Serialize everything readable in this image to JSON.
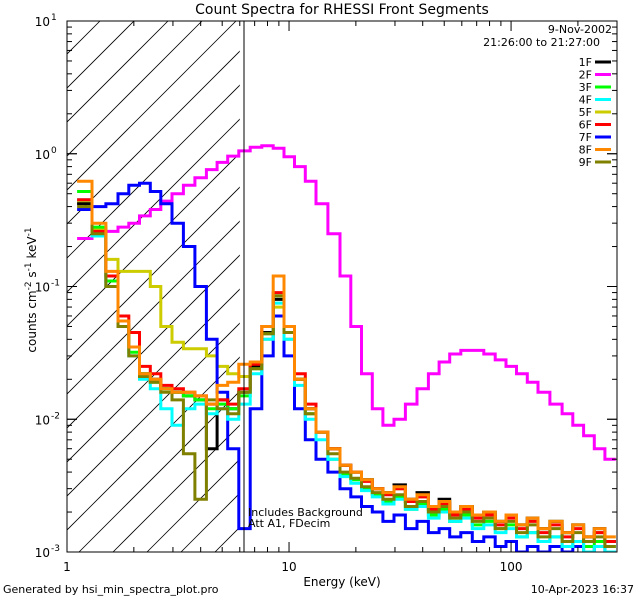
{
  "chart_data": {
    "type": "line",
    "title": "Count Spectra for RHESSI Front Segments",
    "xlabel": "Energy (keV)",
    "ylabel": "counts cm-2 s-1 keV-1",
    "xscale": "log",
    "yscale": "log",
    "xlim": [
      1,
      300
    ],
    "ylim": [
      0.001,
      10
    ],
    "x_tick_labels": [
      {
        "value": 1,
        "label": "1"
      },
      {
        "value": 10,
        "label": "10"
      },
      {
        "value": 100,
        "label": "100"
      }
    ],
    "y_tick_labels": [
      {
        "value": 0.001,
        "base": "10",
        "exp": "-3"
      },
      {
        "value": 0.01,
        "base": "10",
        "exp": "-2"
      },
      {
        "value": 0.1,
        "base": "10",
        "exp": "-1"
      },
      {
        "value": 1,
        "base": "10",
        "exp": "0"
      },
      {
        "value": 10,
        "base": "10",
        "exp": "1"
      }
    ],
    "date": "9-Nov-2002",
    "time_range": "21:26:00 to 21:27:00",
    "excluded_region": {
      "xmin": 1,
      "xmax": 6,
      "style": "hatched"
    },
    "annotations": [
      "Includes Background",
      "Att A1, FDecim"
    ],
    "legend_position": "top-right",
    "series": [
      {
        "name": "1F",
        "color": "#000000",
        "x": [
          1.2,
          1.4,
          1.6,
          1.8,
          2.0,
          2.25,
          2.5,
          2.8,
          3.15,
          3.55,
          4.0,
          4.5,
          5.0,
          5.6,
          6.3,
          7.1,
          8.0,
          9.0,
          10.0,
          11.2,
          12.5,
          14,
          16,
          18,
          20,
          22.5,
          25,
          28,
          31.5,
          35.5,
          40,
          45,
          50,
          56,
          63,
          71,
          80,
          90,
          100,
          112,
          125,
          140,
          160,
          180,
          200,
          225,
          250,
          280
        ],
        "y": [
          0.42,
          0.25,
          0.1,
          0.05,
          0.035,
          0.022,
          0.02,
          0.017,
          0.016,
          0.015,
          0.014,
          0.006,
          0.014,
          0.012,
          0.016,
          0.025,
          0.045,
          0.08,
          0.045,
          0.02,
          0.012,
          0.008,
          0.006,
          0.0045,
          0.004,
          0.0035,
          0.003,
          0.0028,
          0.0032,
          0.0025,
          0.0028,
          0.0022,
          0.0025,
          0.002,
          0.0022,
          0.0019,
          0.002,
          0.0017,
          0.0019,
          0.0016,
          0.0018,
          0.0015,
          0.0017,
          0.0014,
          0.0016,
          0.0013,
          0.0015,
          0.0012
        ]
      },
      {
        "name": "2F",
        "color": "#ff00ff",
        "x": [
          1.2,
          1.4,
          1.6,
          1.8,
          2.0,
          2.25,
          2.5,
          2.8,
          3.15,
          3.55,
          4.0,
          4.5,
          5.0,
          5.6,
          6.3,
          7.1,
          8.0,
          9.0,
          10.0,
          11.2,
          12.5,
          14,
          16,
          18,
          20,
          22.5,
          25,
          28,
          31.5,
          35.5,
          40,
          45,
          50,
          56,
          63,
          71,
          80,
          90,
          100,
          112,
          125,
          140,
          160,
          180,
          200,
          225,
          250,
          280
        ],
        "y": [
          0.23,
          0.24,
          0.26,
          0.28,
          0.3,
          0.34,
          0.38,
          0.44,
          0.5,
          0.58,
          0.66,
          0.76,
          0.86,
          0.96,
          1.05,
          1.12,
          1.15,
          1.1,
          0.95,
          0.8,
          0.62,
          0.42,
          0.25,
          0.12,
          0.05,
          0.022,
          0.012,
          0.009,
          0.01,
          0.013,
          0.017,
          0.022,
          0.027,
          0.031,
          0.033,
          0.033,
          0.031,
          0.028,
          0.025,
          0.022,
          0.019,
          0.016,
          0.013,
          0.011,
          0.009,
          0.0075,
          0.006,
          0.005
        ]
      },
      {
        "name": "3F",
        "color": "#00ff00",
        "x": [
          1.2,
          1.4,
          1.6,
          1.8,
          2.0,
          2.25,
          2.5,
          2.8,
          3.15,
          3.55,
          4.0,
          4.5,
          5.0,
          5.6,
          6.3,
          7.1,
          8.0,
          9.0,
          10.0,
          11.2,
          12.5,
          14,
          16,
          18,
          20,
          22.5,
          25,
          28,
          31.5,
          35.5,
          40,
          45,
          50,
          56,
          63,
          71,
          80,
          90,
          100,
          112,
          125,
          140,
          160,
          180,
          200,
          225,
          250,
          280
        ],
        "y": [
          0.52,
          0.28,
          0.11,
          0.05,
          0.032,
          0.022,
          0.019,
          0.017,
          0.016,
          0.015,
          0.014,
          0.012,
          0.013,
          0.012,
          0.015,
          0.024,
          0.044,
          0.085,
          0.045,
          0.02,
          0.011,
          0.008,
          0.005,
          0.0038,
          0.0035,
          0.003,
          0.0027,
          0.0024,
          0.0026,
          0.0021,
          0.0023,
          0.0019,
          0.0021,
          0.0017,
          0.0019,
          0.0016,
          0.0017,
          0.0015,
          0.0016,
          0.0013,
          0.0014,
          0.0012,
          0.0013,
          0.0011,
          0.0012,
          0.0011,
          0.0012,
          0.0011
        ]
      },
      {
        "name": "4F",
        "color": "#00ffff",
        "x": [
          1.2,
          1.4,
          1.6,
          1.8,
          2.0,
          2.25,
          2.5,
          2.8,
          3.15,
          3.55,
          4.0,
          4.5,
          5.0,
          5.6,
          6.3,
          7.1,
          8.0,
          9.0,
          10.0,
          11.2,
          12.5,
          14,
          16,
          18,
          20,
          22.5,
          25,
          28,
          31.5,
          35.5,
          40,
          45,
          50,
          56,
          63,
          71,
          80,
          90,
          100,
          112,
          125,
          140,
          160,
          180,
          200,
          225,
          250,
          280
        ],
        "y": [
          0.45,
          0.24,
          0.1,
          0.05,
          0.03,
          0.02,
          0.017,
          0.012,
          0.009,
          0.012,
          0.013,
          0.011,
          0.012,
          0.01,
          0.013,
          0.022,
          0.04,
          0.075,
          0.04,
          0.018,
          0.01,
          0.007,
          0.005,
          0.0037,
          0.0033,
          0.0029,
          0.0026,
          0.0023,
          0.0025,
          0.0021,
          0.0022,
          0.0018,
          0.002,
          0.0017,
          0.0018,
          0.0015,
          0.0016,
          0.0014,
          0.0015,
          0.0013,
          0.0014,
          0.0012,
          0.0013,
          0.0011,
          0.0012,
          0.001,
          0.0011,
          0.001
        ]
      },
      {
        "name": "5F",
        "color": "#cccc00",
        "x": [
          1.2,
          1.4,
          1.6,
          1.8,
          2.0,
          2.25,
          2.5,
          2.8,
          3.15,
          3.55,
          4.0,
          4.5,
          5.0,
          5.6,
          6.3,
          7.1,
          8.0,
          9.0,
          10.0,
          11.2,
          12.5,
          14,
          16,
          18,
          20,
          22.5,
          25,
          28,
          31.5,
          35.5,
          40,
          45,
          50,
          56,
          63,
          71,
          80,
          90,
          100,
          112,
          125,
          140,
          160,
          180,
          200,
          225,
          250,
          280
        ],
        "y": [
          0.43,
          0.27,
          0.16,
          0.13,
          0.13,
          0.13,
          0.1,
          0.05,
          0.038,
          0.034,
          0.034,
          0.03,
          0.025,
          0.022,
          0.021,
          0.025,
          0.04,
          0.07,
          0.04,
          0.02,
          0.012,
          0.008,
          0.006,
          0.0045,
          0.004,
          0.0035,
          0.003,
          0.0028,
          0.003,
          0.0024,
          0.0026,
          0.0022,
          0.0024,
          0.002,
          0.0022,
          0.0019,
          0.002,
          0.0017,
          0.0019,
          0.0016,
          0.0018,
          0.0015,
          0.0017,
          0.0014,
          0.0016,
          0.0013,
          0.0014,
          0.0012
        ]
      },
      {
        "name": "6F",
        "color": "#ff0000",
        "x": [
          1.2,
          1.4,
          1.6,
          1.8,
          2.0,
          2.25,
          2.5,
          2.8,
          3.15,
          3.55,
          4.0,
          4.5,
          5.0,
          5.6,
          6.3,
          7.1,
          8.0,
          9.0,
          10.0,
          11.2,
          12.5,
          14,
          16,
          18,
          20,
          22.5,
          25,
          28,
          31.5,
          35.5,
          40,
          45,
          50,
          56,
          63,
          71,
          80,
          90,
          100,
          112,
          125,
          140,
          160,
          180,
          200,
          225,
          250,
          280
        ],
        "y": [
          0.45,
          0.26,
          0.12,
          0.06,
          0.045,
          0.025,
          0.022,
          0.018,
          0.017,
          0.016,
          0.015,
          0.013,
          0.014,
          0.013,
          0.017,
          0.026,
          0.05,
          0.09,
          0.05,
          0.022,
          0.013,
          0.008,
          0.006,
          0.0045,
          0.004,
          0.0034,
          0.003,
          0.0027,
          0.003,
          0.0024,
          0.0026,
          0.0021,
          0.0023,
          0.0019,
          0.0021,
          0.0018,
          0.0019,
          0.0016,
          0.0018,
          0.0015,
          0.0017,
          0.0014,
          0.0016,
          0.0013,
          0.0015,
          0.0012,
          0.0014,
          0.0012
        ]
      },
      {
        "name": "7F",
        "color": "#0000ff",
        "x": [
          1.2,
          1.4,
          1.6,
          1.8,
          2.0,
          2.25,
          2.5,
          2.8,
          3.15,
          3.55,
          4.0,
          4.5,
          5.0,
          5.6,
          6.3,
          7.1,
          8.0,
          9.0,
          10.0,
          11.2,
          12.5,
          14,
          16,
          18,
          20,
          22.5,
          25,
          28,
          31.5,
          35.5,
          40,
          45,
          50,
          56,
          63,
          71,
          80,
          90,
          100,
          112,
          125,
          140,
          160,
          180,
          200,
          225,
          250,
          280
        ],
        "y": [
          0.38,
          0.4,
          0.42,
          0.5,
          0.58,
          0.6,
          0.52,
          0.42,
          0.3,
          0.2,
          0.1,
          0.04,
          0.016,
          0.006,
          0.0015,
          0.012,
          0.03,
          0.06,
          0.03,
          0.012,
          0.007,
          0.005,
          0.004,
          0.003,
          0.0026,
          0.0022,
          0.002,
          0.0017,
          0.0019,
          0.0015,
          0.0017,
          0.0014,
          0.0015,
          0.0013,
          0.0014,
          0.0012,
          0.0013,
          0.0011,
          0.0012,
          0.001,
          0.0011,
          0.001,
          0.0011,
          0.001,
          0.0011,
          0.001,
          0.0011,
          0.001
        ]
      },
      {
        "name": "8F",
        "color": "#ff8800",
        "x": [
          1.2,
          1.4,
          1.6,
          1.8,
          2.0,
          2.25,
          2.5,
          2.8,
          3.15,
          3.55,
          4.0,
          4.5,
          5.0,
          5.6,
          6.3,
          7.1,
          8.0,
          9.0,
          10.0,
          11.2,
          12.5,
          14,
          16,
          18,
          20,
          22.5,
          25,
          28,
          31.5,
          35.5,
          40,
          45,
          50,
          56,
          63,
          71,
          80,
          90,
          100,
          112,
          125,
          140,
          160,
          180,
          200,
          225,
          250,
          280
        ],
        "y": [
          0.62,
          0.3,
          0.13,
          0.055,
          0.035,
          0.022,
          0.02,
          0.017,
          0.016,
          0.016,
          0.015,
          0.013,
          0.018,
          0.019,
          0.026,
          0.027,
          0.05,
          0.12,
          0.05,
          0.02,
          0.012,
          0.008,
          0.006,
          0.0045,
          0.004,
          0.0035,
          0.003,
          0.0028,
          0.0031,
          0.0025,
          0.0027,
          0.0022,
          0.0024,
          0.002,
          0.0022,
          0.0019,
          0.002,
          0.0017,
          0.0019,
          0.0016,
          0.0018,
          0.0015,
          0.0017,
          0.0014,
          0.0016,
          0.0013,
          0.0015,
          0.0013
        ]
      },
      {
        "name": "9F",
        "color": "#808000",
        "x": [
          1.2,
          1.4,
          1.6,
          1.8,
          2.0,
          2.25,
          2.5,
          2.8,
          3.15,
          3.55,
          4.0,
          4.5,
          5.0,
          5.6,
          6.3,
          7.1,
          8.0,
          9.0,
          10.0,
          11.2,
          12.5,
          14,
          16,
          18,
          20,
          22.5,
          25,
          28,
          31.5,
          35.5,
          40,
          45,
          50,
          56,
          63,
          71,
          80,
          90,
          100,
          112,
          125,
          140,
          160,
          180,
          200,
          225,
          250,
          280
        ],
        "y": [
          0.4,
          0.25,
          0.1,
          0.05,
          0.03,
          0.021,
          0.019,
          0.016,
          0.014,
          0.0055,
          0.0025,
          0.014,
          0.012,
          0.011,
          0.016,
          0.024,
          0.044,
          0.085,
          0.045,
          0.02,
          0.011,
          0.008,
          0.0055,
          0.004,
          0.0036,
          0.0031,
          0.0028,
          0.0025,
          0.0027,
          0.0022,
          0.0024,
          0.002,
          0.0022,
          0.0018,
          0.002,
          0.0017,
          0.0018,
          0.0015,
          0.0017,
          0.0014,
          0.0016,
          0.0013,
          0.0015,
          0.0012,
          0.0014,
          0.0012,
          0.0013,
          0.0011
        ]
      }
    ]
  },
  "footer": {
    "generated_by": "Generated by hsi_min_spectra_plot.pro",
    "timestamp": "10-Apr-2023 16:37"
  }
}
